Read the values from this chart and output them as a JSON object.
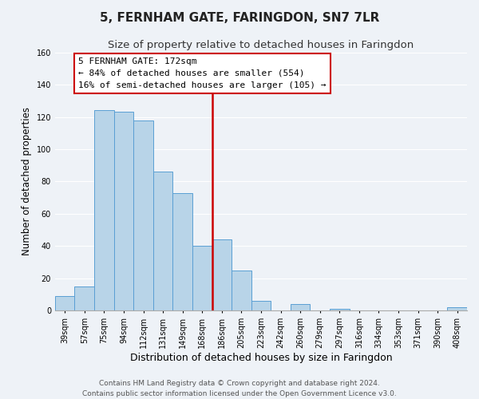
{
  "title": "5, FERNHAM GATE, FARINGDON, SN7 7LR",
  "subtitle": "Size of property relative to detached houses in Faringdon",
  "xlabel": "Distribution of detached houses by size in Faringdon",
  "ylabel": "Number of detached properties",
  "bar_labels": [
    "39sqm",
    "57sqm",
    "75sqm",
    "94sqm",
    "112sqm",
    "131sqm",
    "149sqm",
    "168sqm",
    "186sqm",
    "205sqm",
    "223sqm",
    "242sqm",
    "260sqm",
    "279sqm",
    "297sqm",
    "316sqm",
    "334sqm",
    "353sqm",
    "371sqm",
    "390sqm",
    "408sqm"
  ],
  "bar_heights": [
    9,
    15,
    124,
    123,
    118,
    86,
    73,
    40,
    44,
    25,
    6,
    0,
    4,
    0,
    1,
    0,
    0,
    0,
    0,
    0,
    2
  ],
  "bar_color": "#b8d4e8",
  "bar_edge_color": "#5a9fd4",
  "vline_x_idx": 7,
  "vline_color": "#cc0000",
  "annotation_title": "5 FERNHAM GATE: 172sqm",
  "annotation_line1": "← 84% of detached houses are smaller (554)",
  "annotation_line2": "16% of semi-detached houses are larger (105) →",
  "annotation_box_color": "#ffffff",
  "annotation_box_edge": "#cc0000",
  "ylim": [
    0,
    160
  ],
  "yticks": [
    0,
    20,
    40,
    60,
    80,
    100,
    120,
    140,
    160
  ],
  "footer_line1": "Contains HM Land Registry data © Crown copyright and database right 2024.",
  "footer_line2": "Contains public sector information licensed under the Open Government Licence v3.0.",
  "background_color": "#eef2f7",
  "grid_color": "#ffffff",
  "title_fontsize": 11,
  "subtitle_fontsize": 9.5,
  "xlabel_fontsize": 9,
  "ylabel_fontsize": 8.5,
  "tick_fontsize": 7,
  "footer_fontsize": 6.5,
  "annotation_fontsize": 8
}
